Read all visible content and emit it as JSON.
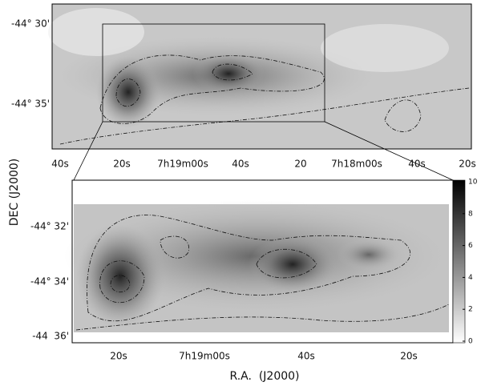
{
  "axis_labels": {
    "y": "DEC (J2000)",
    "x": "R.A.  (J2000)"
  },
  "top_panel": {
    "yticks": [
      "-44° 30'",
      "-44° 35'"
    ],
    "xticks": [
      "40s",
      "20s",
      "7h19m00s",
      "40s",
      "20",
      "7h18m00s",
      "40s",
      "20s"
    ]
  },
  "bottom_panel": {
    "yticks": [
      "-44° 32'",
      "-44° 34'",
      "-44  36'"
    ],
    "xticks": [
      "20s",
      "7h19m00s",
      "40s",
      "20s"
    ]
  },
  "colorbar": {
    "range": [
      0,
      10
    ],
    "ticks": [
      0,
      2,
      4,
      6,
      8,
      10
    ]
  }
}
